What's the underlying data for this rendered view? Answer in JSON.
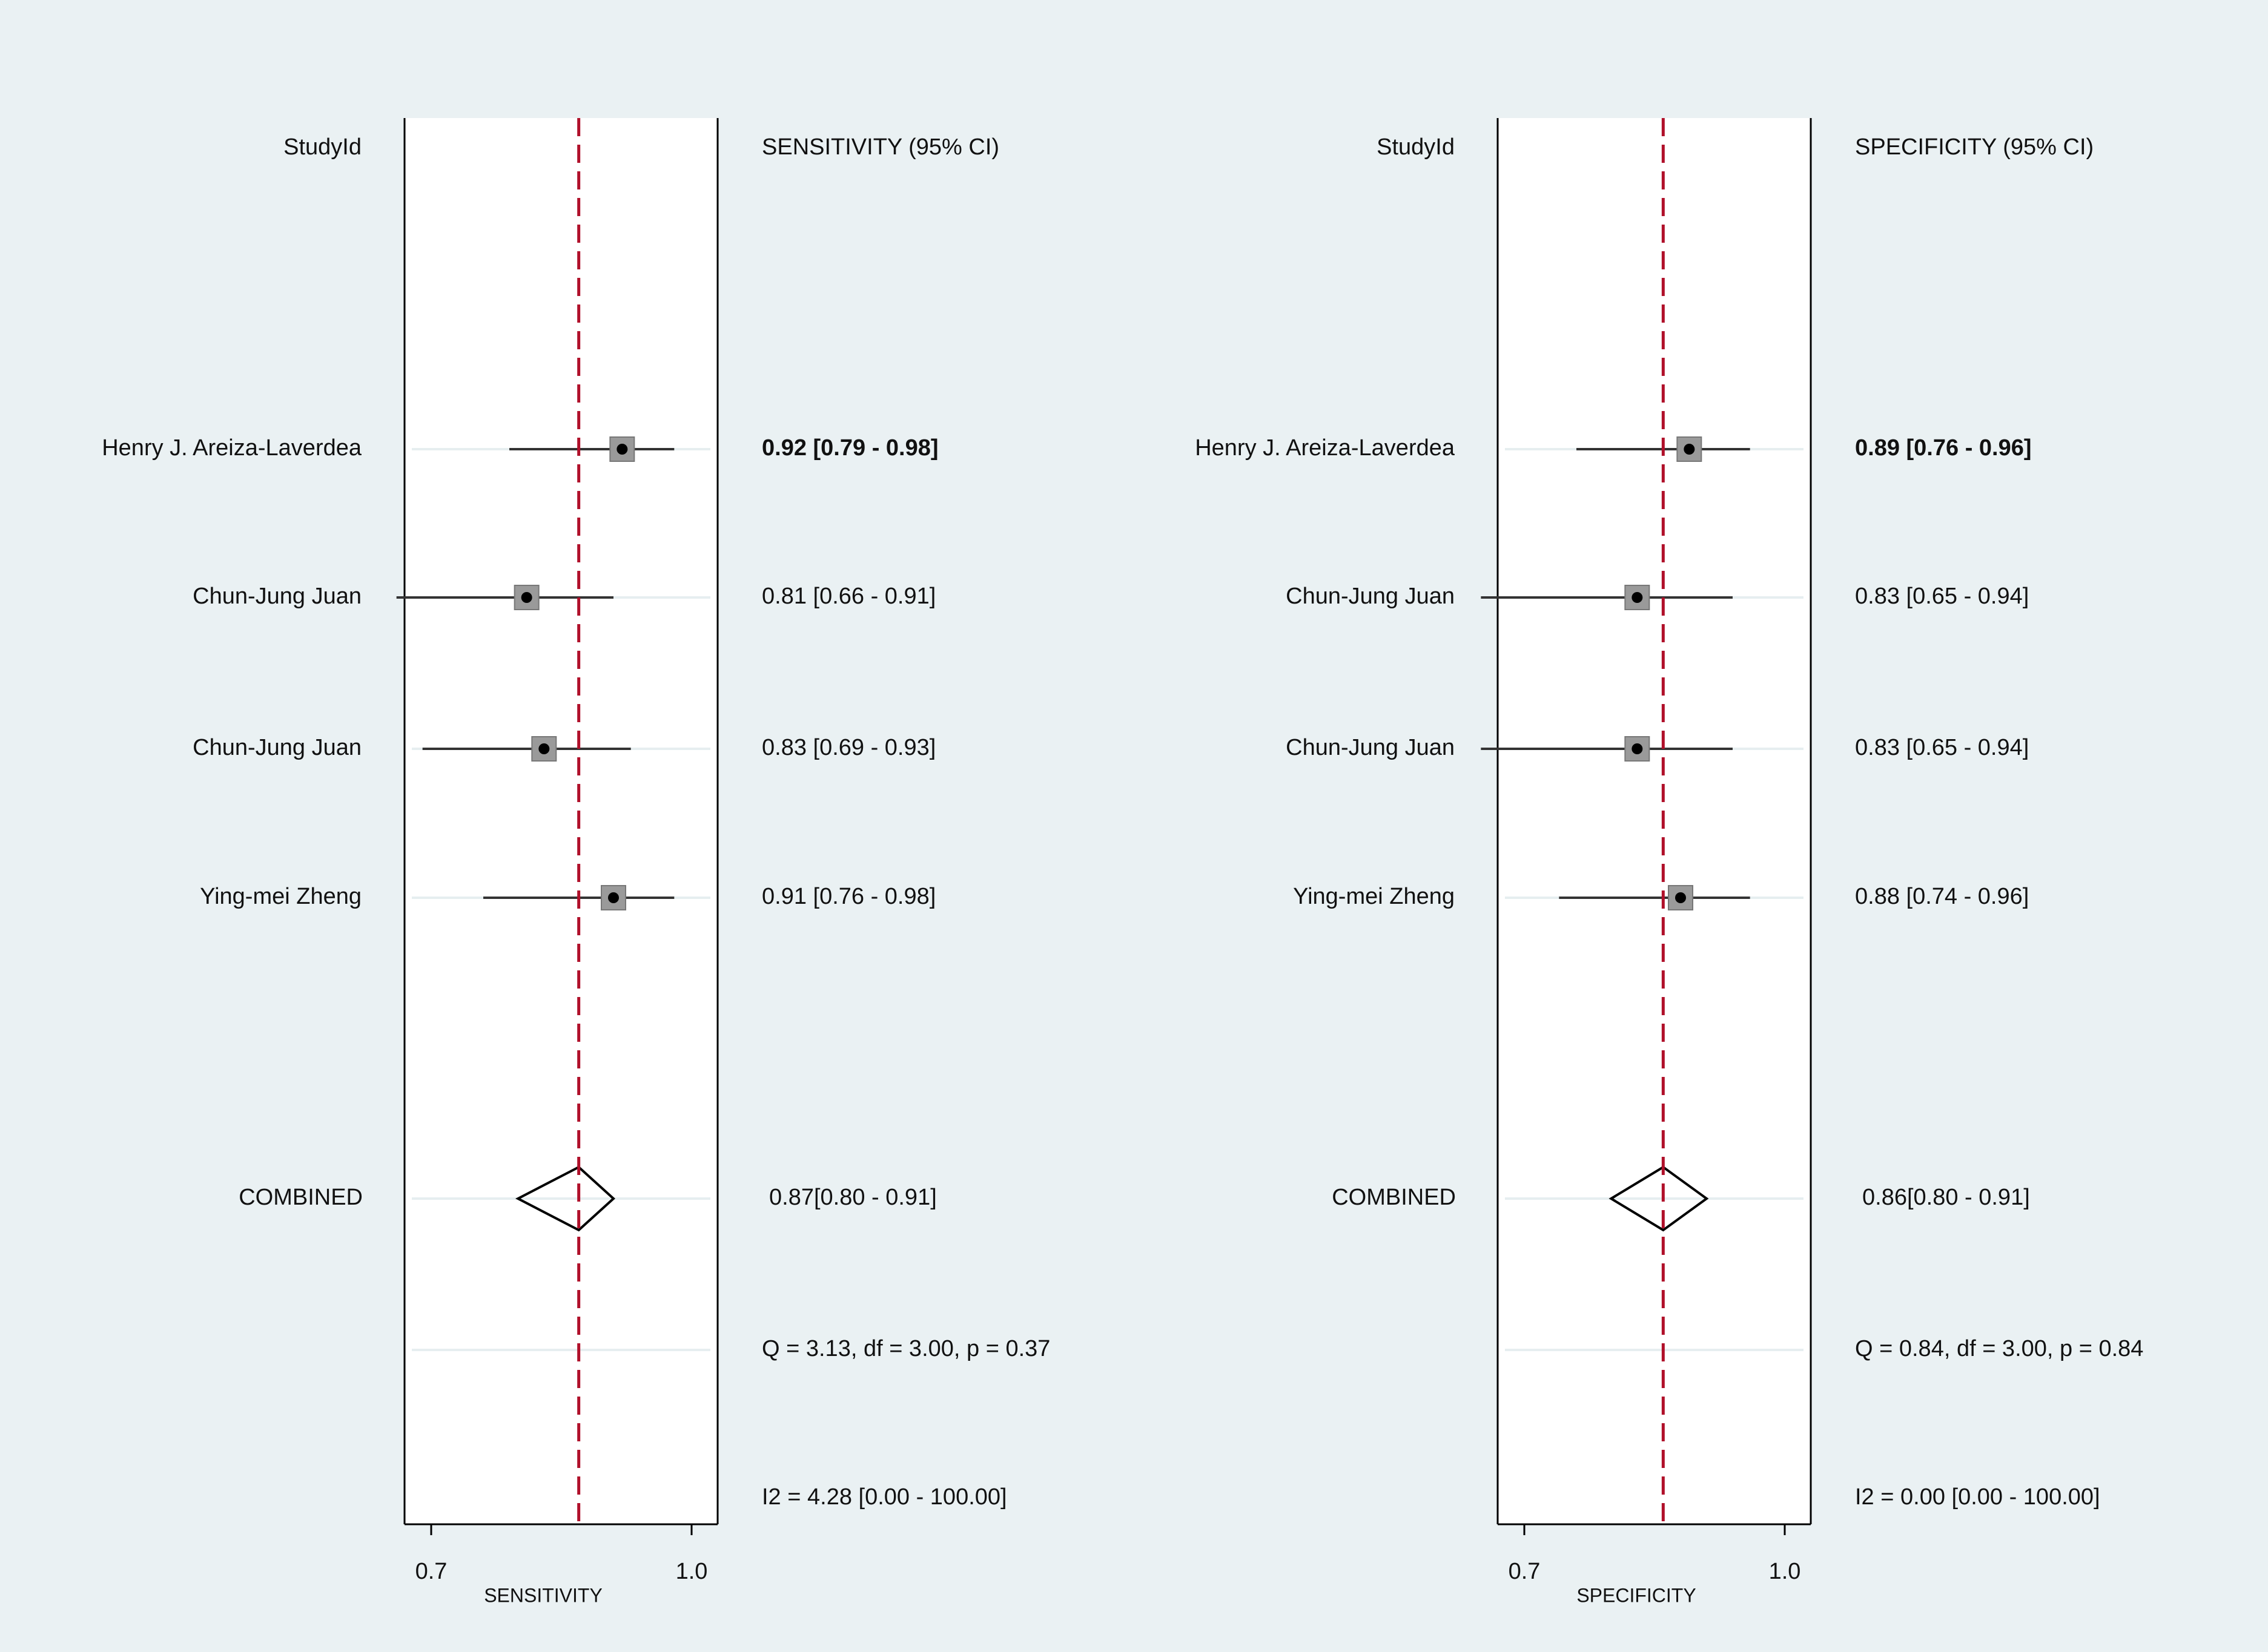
{
  "colors": {
    "background": "#eaf1f3",
    "plot_bg": "#ffffff",
    "row_line": "#e6eef0",
    "reference_line": "#b0102a",
    "marker_fill": "#9a9a9a",
    "point": "#000000",
    "ci_line": "#333333"
  },
  "chart_data": [
    {
      "type": "forest",
      "study_header": "StudyId",
      "estimate_header": "SENSITIVITY (95% CI)",
      "xlabel": "SENSITIVITY",
      "xlim": [
        0.7,
        1.0
      ],
      "xticks": [
        0.7,
        1.0
      ],
      "tick_labels": [
        "0.7",
        "1.0"
      ],
      "reference_line": 0.87,
      "studies": [
        {
          "name": "Henry J. Areiza-Laverdea",
          "estimate": 0.92,
          "lower": 0.79,
          "upper": 0.98,
          "label": "0.92 [0.79 - 0.98]"
        },
        {
          "name": "Chun-Jung Juan",
          "estimate": 0.81,
          "lower": 0.66,
          "upper": 0.91,
          "label": "0.81 [0.66 - 0.91]"
        },
        {
          "name": "Chun-Jung Juan",
          "estimate": 0.83,
          "lower": 0.69,
          "upper": 0.93,
          "label": "0.83 [0.69 - 0.93]"
        },
        {
          "name": "Ying-mei Zheng",
          "estimate": 0.91,
          "lower": 0.76,
          "upper": 0.98,
          "label": "0.91 [0.76 - 0.98]"
        }
      ],
      "combined": {
        "name": "COMBINED",
        "estimate": 0.87,
        "lower": 0.8,
        "upper": 0.91,
        "label": "0.87[0.80 - 0.91]"
      },
      "heterogeneity": "Q =  3.13, df = 3.00, p =  0.37",
      "i2": "I2 = 4.28 [0.00 - 100.00]"
    },
    {
      "type": "forest",
      "study_header": "StudyId",
      "estimate_header": "SPECIFICITY (95% CI)",
      "xlabel": "SPECIFICITY",
      "xlim": [
        0.7,
        1.0
      ],
      "xticks": [
        0.7,
        1.0
      ],
      "tick_labels": [
        "0.7",
        "1.0"
      ],
      "reference_line": 0.86,
      "studies": [
        {
          "name": "Henry J. Areiza-Laverdea",
          "estimate": 0.89,
          "lower": 0.76,
          "upper": 0.96,
          "label": "0.89 [0.76 - 0.96]"
        },
        {
          "name": "Chun-Jung Juan",
          "estimate": 0.83,
          "lower": 0.65,
          "upper": 0.94,
          "label": "0.83 [0.65 - 0.94]"
        },
        {
          "name": "Chun-Jung Juan",
          "estimate": 0.83,
          "lower": 0.65,
          "upper": 0.94,
          "label": "0.83 [0.65 - 0.94]"
        },
        {
          "name": "Ying-mei Zheng",
          "estimate": 0.88,
          "lower": 0.74,
          "upper": 0.96,
          "label": "0.88 [0.74 - 0.96]"
        }
      ],
      "combined": {
        "name": "COMBINED",
        "estimate": 0.86,
        "lower": 0.8,
        "upper": 0.91,
        "label": "0.86[0.80 - 0.91]"
      },
      "heterogeneity": "Q =  0.84, df = 3.00, p =  0.84",
      "i2": "I2 = 0.00 [0.00 - 100.00]"
    }
  ]
}
